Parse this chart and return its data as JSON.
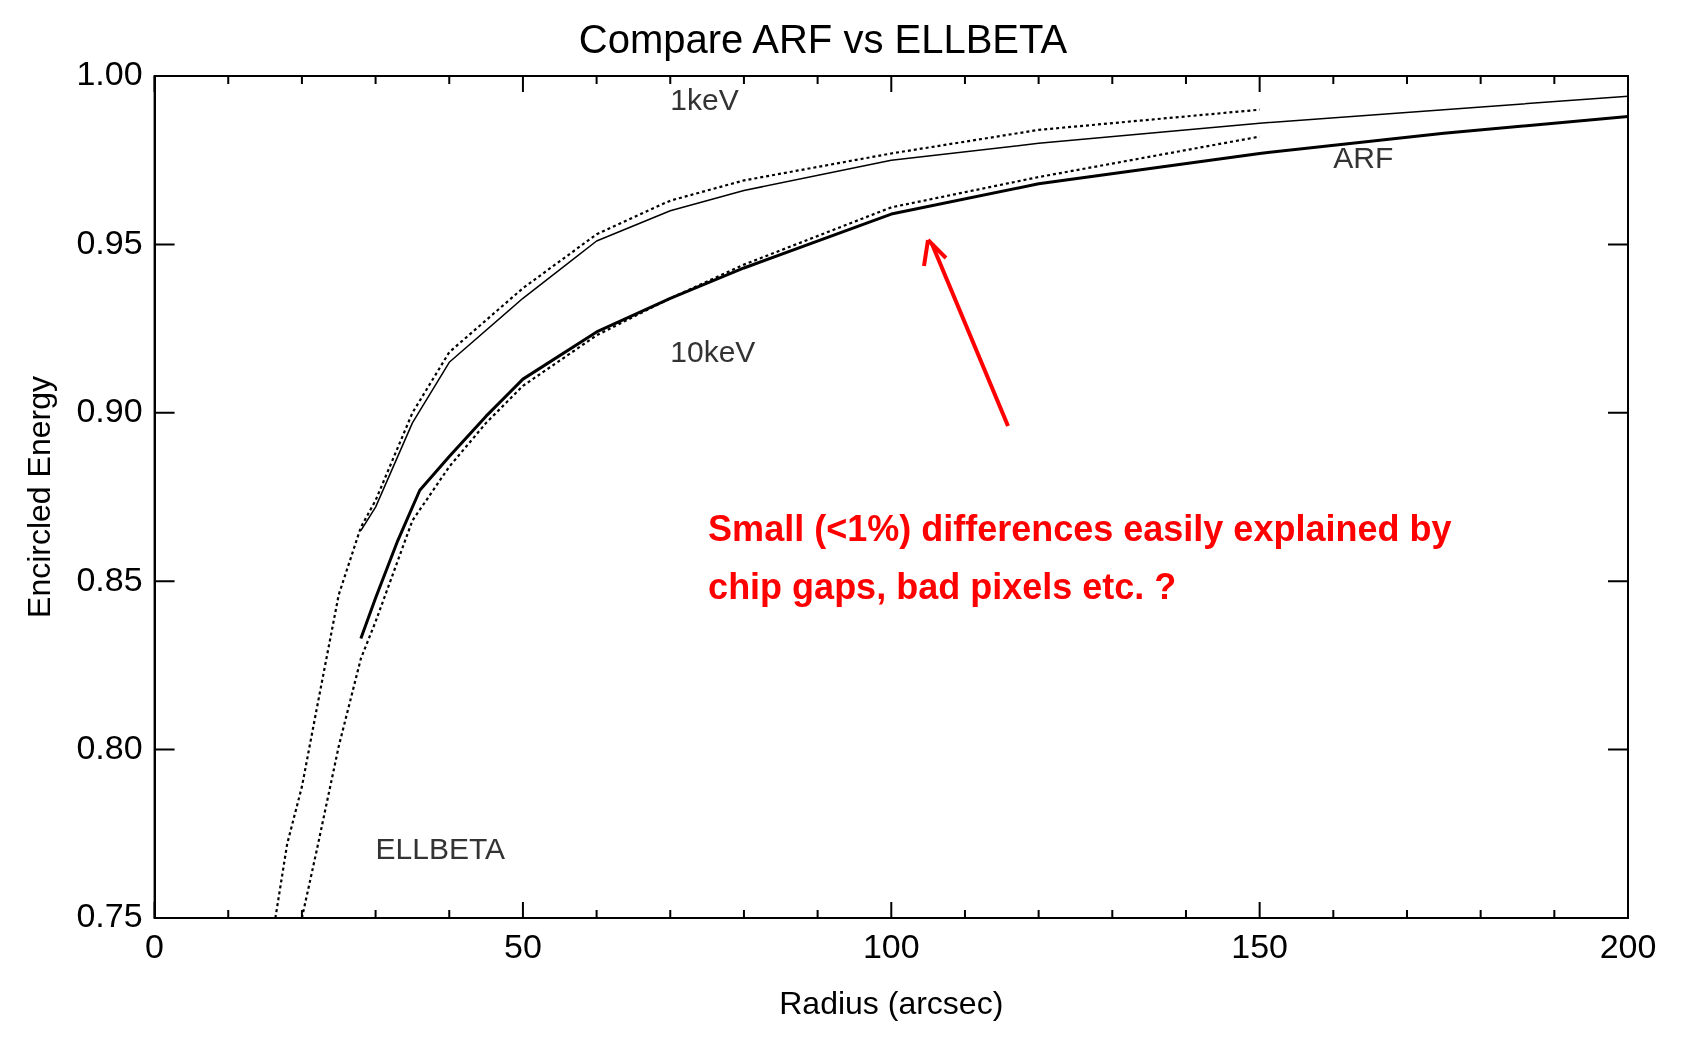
{
  "chart_data": {
    "type": "line",
    "title": "Compare ARF vs ELLBETA",
    "xlabel": "Radius (arcsec)",
    "ylabel": "Encircled Energy",
    "xlim": [
      0,
      200
    ],
    "ylim": [
      0.75,
      1.0
    ],
    "xticks": [
      0,
      {
        "value": 10,
        "label": null
      },
      {
        "value": 20,
        "label": null
      },
      {
        "value": 30,
        "label": null
      },
      {
        "value": 40,
        "label": null
      },
      50,
      {
        "value": 60,
        "label": null
      },
      {
        "value": 70,
        "label": null
      },
      {
        "value": 80,
        "label": null
      },
      {
        "value": 90,
        "label": null
      },
      100,
      {
        "value": 110,
        "label": null
      },
      {
        "value": 120,
        "label": null
      },
      {
        "value": 130,
        "label": null
      },
      {
        "value": 140,
        "label": null
      },
      150,
      {
        "value": 160,
        "label": null
      },
      {
        "value": 170,
        "label": null
      },
      {
        "value": 180,
        "label": null
      },
      {
        "value": 190,
        "label": null
      },
      200
    ],
    "yticks": [
      0.75,
      {
        "value": 0.8,
        "label": "0.80"
      },
      0.85,
      {
        "value": 0.9,
        "label": "0.90"
      },
      0.95,
      {
        "value": 1.0,
        "label": "1.00"
      }
    ],
    "grid": false,
    "marker": "none",
    "series": [
      {
        "color": "#000000",
        "line_style": "solid",
        "x": [
          28,
          30,
          35,
          40,
          50,
          60,
          70,
          80,
          100,
          120,
          150,
          175,
          200
        ],
        "values": [
          0.865,
          0.872,
          0.897,
          0.915,
          0.934,
          0.951,
          0.96,
          0.966,
          0.975,
          0.98,
          0.986,
          0.99,
          0.994
        ]
      },
      {
        "color": "#000000",
        "line_style": "dotted",
        "x": [
          16.4,
          18,
          20,
          22,
          25,
          28,
          30,
          35,
          40,
          50,
          60,
          70,
          80,
          100,
          120,
          150
        ],
        "values": [
          0.75,
          0.772,
          0.789,
          0.812,
          0.846,
          0.866,
          0.874,
          0.9,
          0.918,
          0.937,
          0.953,
          0.963,
          0.969,
          0.977,
          0.984,
          0.99
        ]
      },
      {
        "color": "#000000",
        "line_style": "solid",
        "x": [
          28,
          30,
          33,
          36,
          40,
          45,
          50,
          60,
          70,
          80,
          100,
          120,
          150,
          175,
          200
        ],
        "values": [
          0.833,
          0.845,
          0.862,
          0.877,
          0.887,
          0.899,
          0.91,
          0.924,
          0.934,
          0.943,
          0.959,
          0.968,
          0.977,
          0.983,
          0.988
        ]
      },
      {
        "color": "#000000",
        "line_style": "dotted",
        "x": [
          20,
          22,
          25,
          28,
          30,
          35,
          40,
          45,
          50,
          60,
          70,
          80,
          100,
          120,
          150
        ],
        "values": [
          0.75,
          0.77,
          0.801,
          0.827,
          0.838,
          0.868,
          0.884,
          0.897,
          0.908,
          0.923,
          0.934,
          0.944,
          0.961,
          0.97,
          0.982
        ]
      }
    ],
    "annotations": [
      "1keV",
      "10keV",
      "ARF",
      "ELLBETA",
      "Small (<1%) differences easily explained by chip gaps, bad pixels etc. ?"
    ]
  }
}
